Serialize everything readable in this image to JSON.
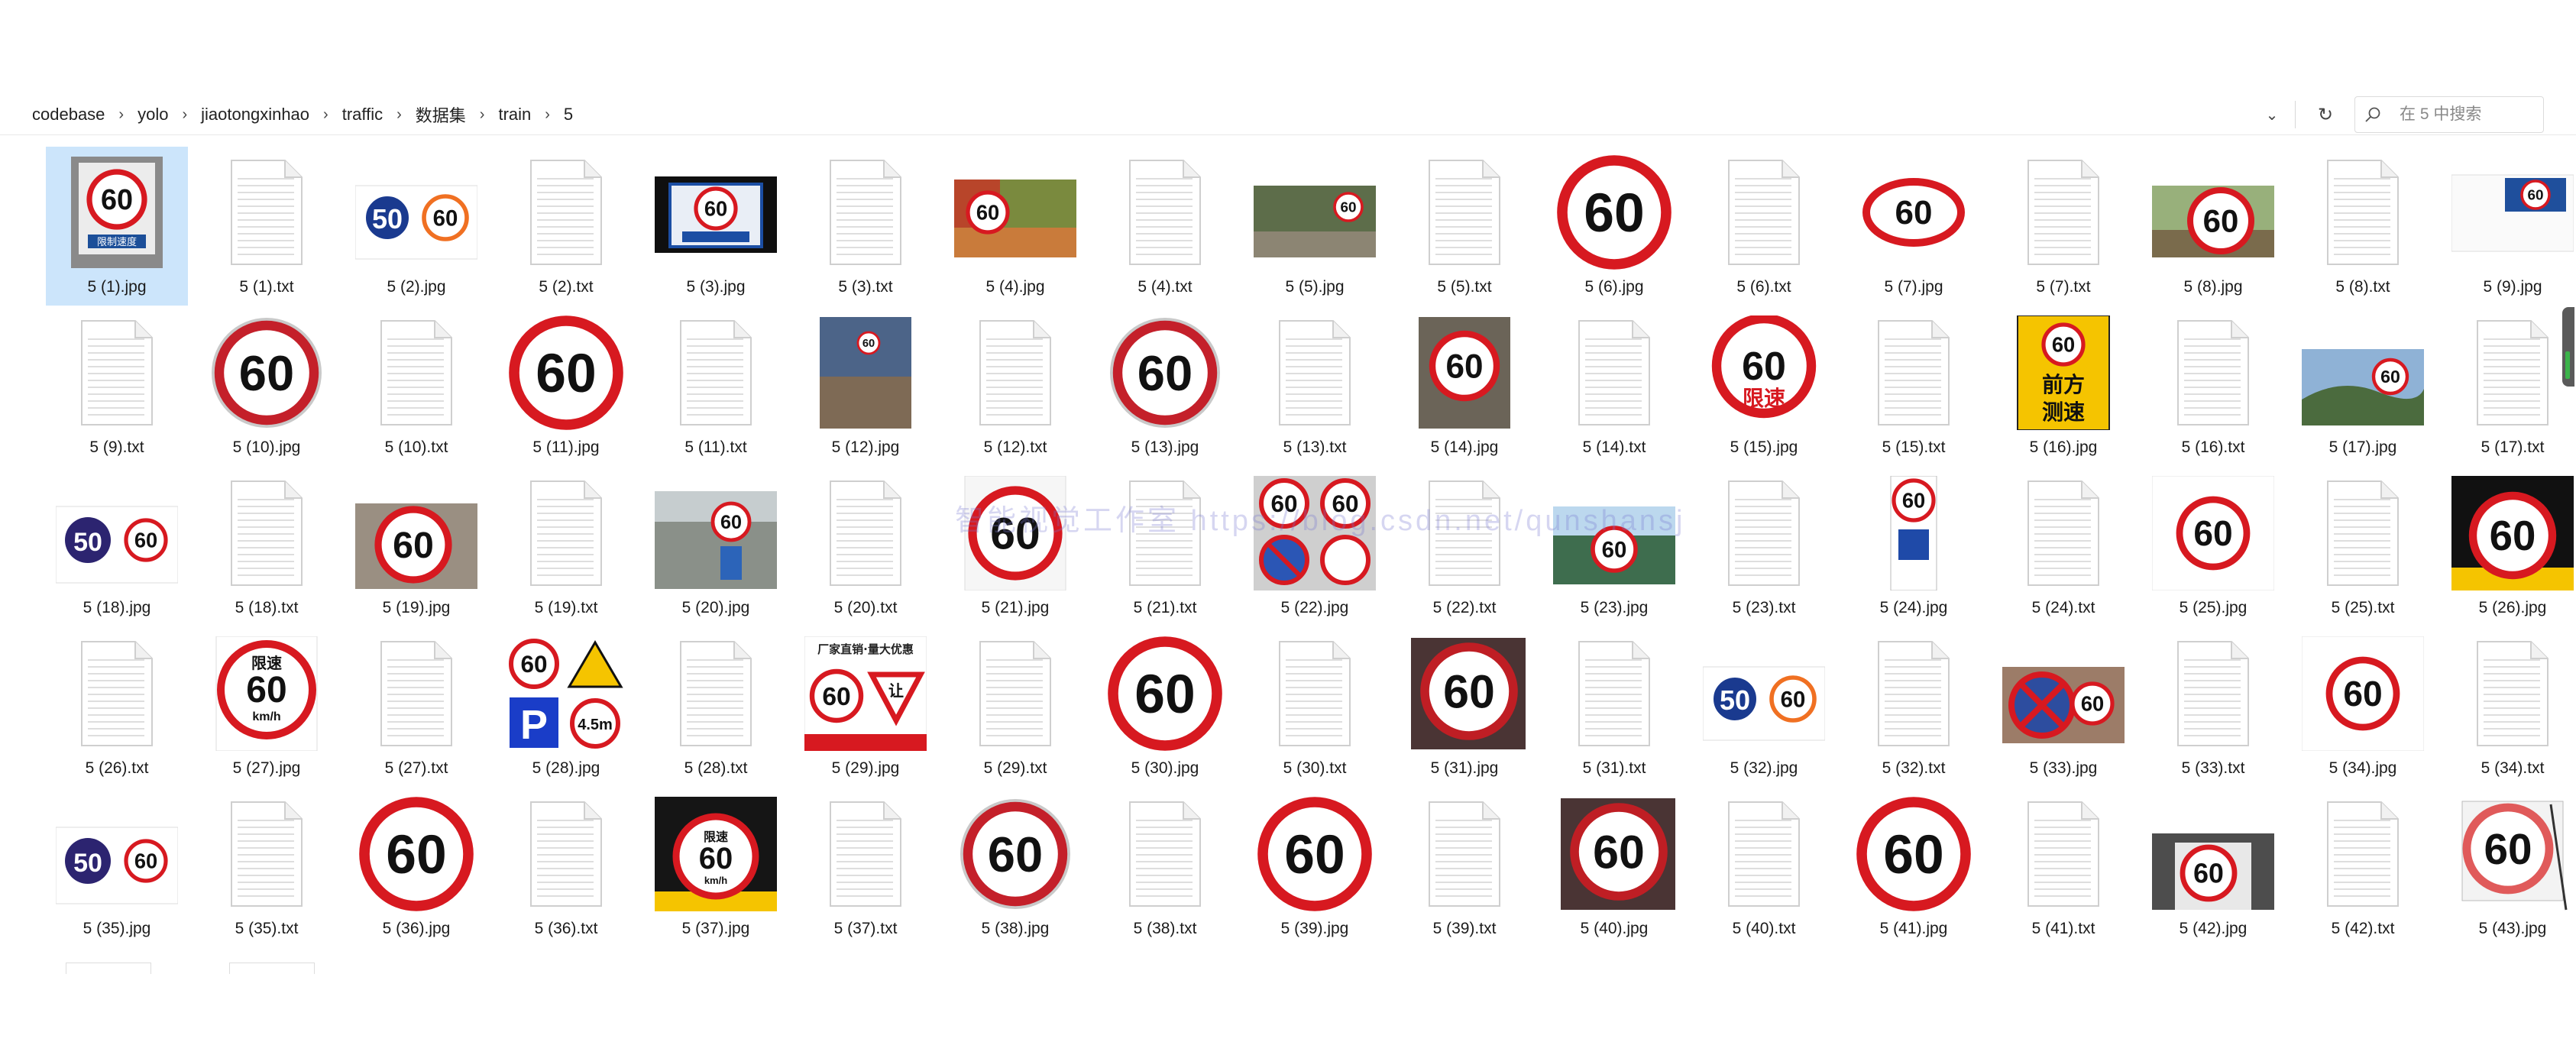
{
  "breadcrumb": [
    "codebase",
    "yolo",
    "jiaotongxinhao",
    "traffic",
    "数据集",
    "train",
    "5"
  ],
  "search": {
    "placeholder": "在 5 中搜索"
  },
  "watermark": "智能视觉工作室 https://blog.csdn.net/qunshansj",
  "files": [
    {
      "name": "5 (1).jpg",
      "kind": "sign",
      "style": "photo",
      "selected": true
    },
    {
      "name": "5 (1).txt",
      "kind": "txt"
    },
    {
      "name": "5 (2).jpg",
      "kind": "sign",
      "style": "pair"
    },
    {
      "name": "5 (2).txt",
      "kind": "txt"
    },
    {
      "name": "5 (3).jpg",
      "kind": "sign",
      "style": "photo-blue"
    },
    {
      "name": "5 (3).txt",
      "kind": "txt"
    },
    {
      "name": "5 (4).jpg",
      "kind": "sign",
      "style": "photo-autumn"
    },
    {
      "name": "5 (4).txt",
      "kind": "txt"
    },
    {
      "name": "5 (5).jpg",
      "kind": "sign",
      "style": "photo-road"
    },
    {
      "name": "5 (5).txt",
      "kind": "txt"
    },
    {
      "name": "5 (6).jpg",
      "kind": "sign",
      "style": "big"
    },
    {
      "name": "5 (6).txt",
      "kind": "txt"
    },
    {
      "name": "5 (7).jpg",
      "kind": "sign",
      "style": "oval"
    },
    {
      "name": "5 (7).txt",
      "kind": "txt"
    },
    {
      "name": "5 (8).jpg",
      "kind": "sign",
      "style": "photo-green"
    },
    {
      "name": "5 (8).txt",
      "kind": "txt"
    },
    {
      "name": "5 (9).jpg",
      "kind": "sign",
      "style": "small-doc"
    },
    {
      "name": "5 (9).txt",
      "kind": "txt"
    },
    {
      "name": "5 (10).jpg",
      "kind": "sign",
      "style": "big-gray"
    },
    {
      "name": "5 (10).txt",
      "kind": "txt"
    },
    {
      "name": "5 (11).jpg",
      "kind": "sign",
      "style": "big"
    },
    {
      "name": "5 (11).txt",
      "kind": "txt"
    },
    {
      "name": "5 (12).jpg",
      "kind": "sign",
      "style": "photo-street"
    },
    {
      "name": "5 (12).txt",
      "kind": "txt"
    },
    {
      "name": "5 (13).jpg",
      "kind": "sign",
      "style": "big-gray"
    },
    {
      "name": "5 (13).txt",
      "kind": "txt"
    },
    {
      "name": "5 (14).jpg",
      "kind": "sign",
      "style": "photo-shop"
    },
    {
      "name": "5 (14).txt",
      "kind": "txt"
    },
    {
      "name": "5 (15).jpg",
      "kind": "sign",
      "style": "limit-text",
      "text": "限速"
    },
    {
      "name": "5 (15).txt",
      "kind": "txt"
    },
    {
      "name": "5 (16).jpg",
      "kind": "sign",
      "style": "yellow",
      "text": "前方测速"
    },
    {
      "name": "5 (16).txt",
      "kind": "txt"
    },
    {
      "name": "5 (17).jpg",
      "kind": "sign",
      "style": "photo-hills"
    },
    {
      "name": "5 (17).txt",
      "kind": "txt"
    },
    {
      "name": "5 (18).jpg",
      "kind": "sign",
      "style": "pair-navy"
    },
    {
      "name": "5 (18).txt",
      "kind": "txt"
    },
    {
      "name": "5 (19).jpg",
      "kind": "sign",
      "style": "photo-tilt"
    },
    {
      "name": "5 (19).txt",
      "kind": "txt"
    },
    {
      "name": "5 (20).jpg",
      "kind": "sign",
      "style": "photo-city"
    },
    {
      "name": "5 (20).txt",
      "kind": "txt"
    },
    {
      "name": "5 (21).jpg",
      "kind": "sign",
      "style": "big-plain"
    },
    {
      "name": "5 (21).txt",
      "kind": "txt"
    },
    {
      "name": "5 (22).jpg",
      "kind": "sign",
      "style": "quad"
    },
    {
      "name": "5 (22).txt",
      "kind": "txt"
    },
    {
      "name": "5 (23).jpg",
      "kind": "sign",
      "style": "photo-trees"
    },
    {
      "name": "5 (23).txt",
      "kind": "txt"
    },
    {
      "name": "5 (24).jpg",
      "kind": "sign",
      "style": "tall-blue"
    },
    {
      "name": "5 (24).txt",
      "kind": "txt"
    },
    {
      "name": "5 (25).jpg",
      "kind": "sign",
      "style": "small-white"
    },
    {
      "name": "5 (25).txt",
      "kind": "txt"
    },
    {
      "name": "5 (26).jpg",
      "kind": "sign",
      "style": "dark-banner"
    },
    {
      "name": "5 (26).txt",
      "kind": "txt"
    },
    {
      "name": "5 (27).jpg",
      "kind": "sign",
      "style": "kmh",
      "text": "限速",
      "unit": "km/h"
    },
    {
      "name": "5 (27).txt",
      "kind": "txt"
    },
    {
      "name": "5 (28).jpg",
      "kind": "sign",
      "style": "mix4",
      "text": "4.5m"
    },
    {
      "name": "5 (28).txt",
      "kind": "txt"
    },
    {
      "name": "5 (29).jpg",
      "kind": "sign",
      "style": "ad",
      "text": "厂家直销·量大优惠",
      "text2": "让"
    },
    {
      "name": "5 (29).txt",
      "kind": "txt"
    },
    {
      "name": "5 (30).jpg",
      "kind": "sign",
      "style": "big"
    },
    {
      "name": "5 (30).txt",
      "kind": "txt"
    },
    {
      "name": "5 (31).jpg",
      "kind": "sign",
      "style": "photo-dark"
    },
    {
      "name": "5 (31).txt",
      "kind": "txt"
    },
    {
      "name": "5 (32).jpg",
      "kind": "sign",
      "style": "pair"
    },
    {
      "name": "5 (32).txt",
      "kind": "txt"
    },
    {
      "name": "5 (33).jpg",
      "kind": "sign",
      "style": "photo-noparking"
    },
    {
      "name": "5 (33).txt",
      "kind": "txt"
    },
    {
      "name": "5 (34).jpg",
      "kind": "sign",
      "style": "small-white"
    },
    {
      "name": "5 (34).txt",
      "kind": "txt"
    },
    {
      "name": "5 (35).jpg",
      "kind": "sign",
      "style": "pair-navy"
    },
    {
      "name": "5 (35).txt",
      "kind": "txt"
    },
    {
      "name": "5 (36).jpg",
      "kind": "sign",
      "style": "big"
    },
    {
      "name": "5 (36).txt",
      "kind": "txt"
    },
    {
      "name": "5 (37).jpg",
      "kind": "sign",
      "style": "dark-kmh",
      "text": "限速",
      "unit": "km/h"
    },
    {
      "name": "5 (37).txt",
      "kind": "txt"
    },
    {
      "name": "5 (38).jpg",
      "kind": "sign",
      "style": "big-gray"
    },
    {
      "name": "5 (38).txt",
      "kind": "txt"
    },
    {
      "name": "5 (39).jpg",
      "kind": "sign",
      "style": "big"
    },
    {
      "name": "5 (39).txt",
      "kind": "txt"
    },
    {
      "name": "5 (40).jpg",
      "kind": "sign",
      "style": "photo-dark"
    },
    {
      "name": "5 (40).txt",
      "kind": "txt"
    },
    {
      "name": "5 (41).jpg",
      "kind": "sign",
      "style": "big"
    },
    {
      "name": "5 (41).txt",
      "kind": "txt"
    },
    {
      "name": "5 (42).jpg",
      "kind": "sign",
      "style": "photo-gray"
    },
    {
      "name": "5 (42).txt",
      "kind": "txt"
    },
    {
      "name": "5 (43).jpg",
      "kind": "sign",
      "style": "stand"
    }
  ],
  "sign_value": "60",
  "colors": {
    "red": "#d71920",
    "navy": "#1a3a8f",
    "selection": "#cce5fb",
    "yellow": "#f5c400"
  }
}
